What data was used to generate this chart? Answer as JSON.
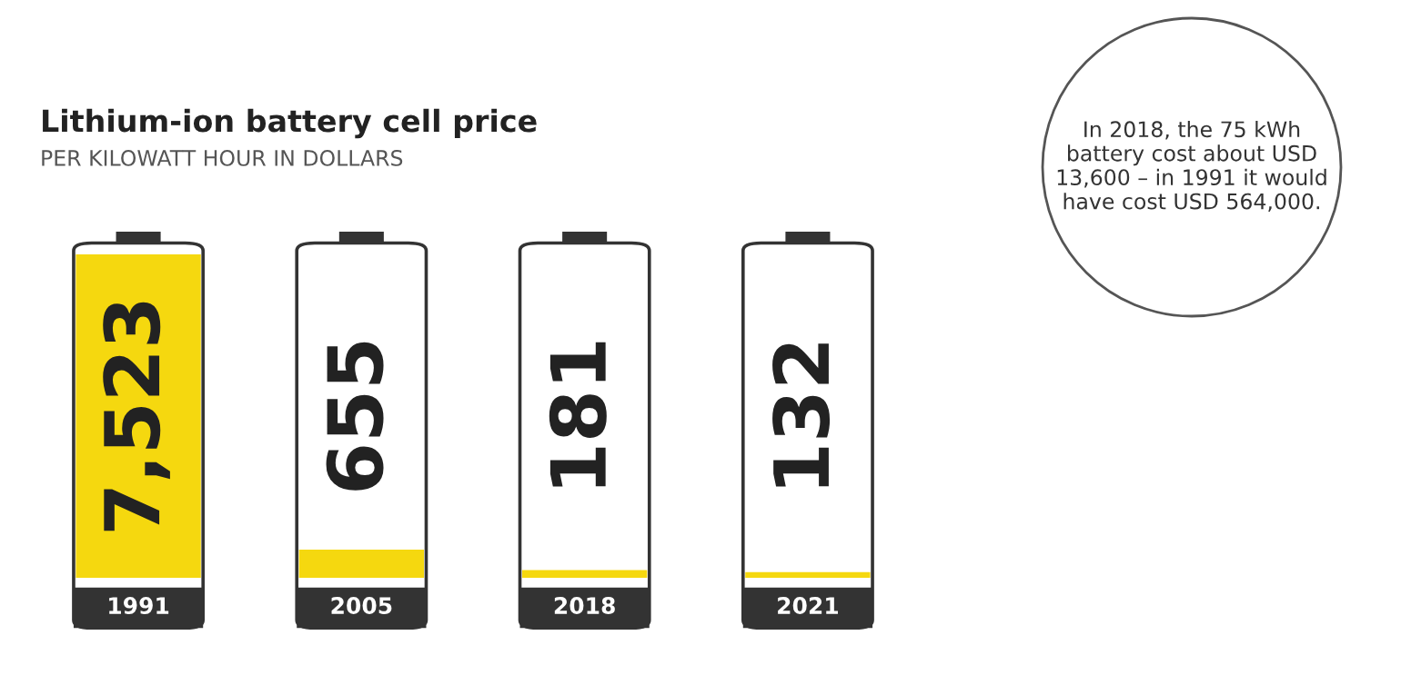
{
  "chart_data": {
    "type": "bar",
    "title": "Lithium-ion battery cell price",
    "subtitle": "PER KILOWATT HOUR IN DOLLARS",
    "categories": [
      "1991",
      "2005",
      "2018",
      "2021"
    ],
    "values": [
      7523,
      655,
      181,
      132
    ],
    "color": "#f5d80f",
    "data_labels": true,
    "value_labels": [
      "7,523",
      "655",
      "181",
      "132"
    ],
    "annotations": [
      "In 2018, the 75 kWh battery cost about USD 13,600 – in 1991 it would have cost USD 564,000."
    ]
  }
}
